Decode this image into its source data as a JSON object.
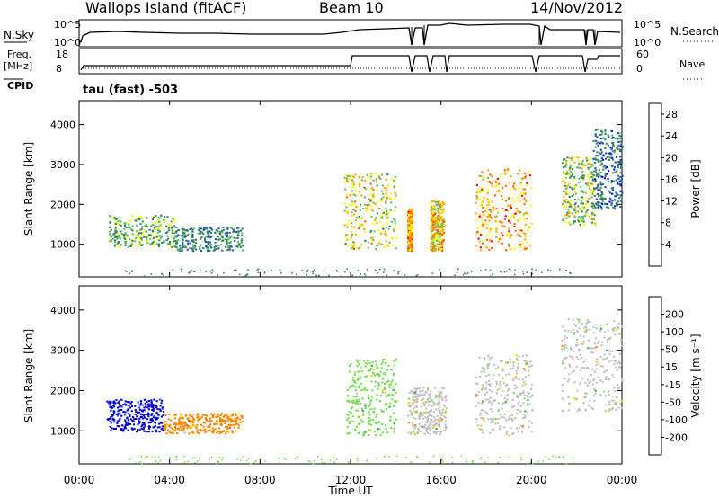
{
  "header": {
    "station": "Wallops Island (fitACF)",
    "beam": "Beam 10",
    "date": "14/Nov/2012"
  },
  "panels": {
    "nsky_label": "N.Sky",
    "nsky_ticks": [
      "10^5",
      "10^0"
    ],
    "nsearch_label": "N.Search",
    "nsearch_ticks": [
      "10^5",
      "10^0"
    ],
    "freq_label_1": "Freq.",
    "freq_label_2": "[MHz]",
    "freq_ticks": [
      "18",
      "8"
    ],
    "nave_label": "Nave",
    "nave_ticks": [
      "60",
      "0"
    ],
    "cpid_label": "CPID",
    "cpid_text": "tau (fast) -503"
  },
  "chart_data": [
    {
      "type": "heatmap",
      "name": "power",
      "xlabel": "Time UT",
      "ylabel": "Slant Range [km]",
      "x_ticks": [
        "00:00",
        "04:00",
        "08:00",
        "12:00",
        "16:00",
        "20:00",
        "00:00"
      ],
      "y_ticks": [
        1000,
        2000,
        3000,
        4000
      ],
      "ylim": [
        180,
        4600
      ],
      "colorbar_label": "Power [dB]",
      "colorbar_ticks": [
        4,
        8,
        12,
        16,
        20,
        24,
        28
      ],
      "colorbar_range": [
        0,
        30
      ],
      "colors": [
        "#0000ff",
        "#1e4fb0",
        "#3a7a6a",
        "#2e8b57",
        "#66bb66",
        "#ffff00",
        "#ffaa00",
        "#ff6600",
        "#ff0000"
      ],
      "regions": [
        {
          "t": [
            1.3,
            4.2
          ],
          "r": [
            950,
            1750
          ],
          "v": 14
        },
        {
          "t": [
            4.2,
            7.2
          ],
          "r": [
            850,
            1450
          ],
          "v": 10
        },
        {
          "t": [
            11.7,
            14.0
          ],
          "r": [
            900,
            2800
          ],
          "v": 18
        },
        {
          "t": [
            14.5,
            14.7
          ],
          "r": [
            850,
            1900
          ],
          "v": 22
        },
        {
          "t": [
            15.5,
            16.1
          ],
          "r": [
            850,
            2100
          ],
          "v": 20
        },
        {
          "t": [
            17.5,
            20.0
          ],
          "r": [
            850,
            2900
          ],
          "v": 22
        },
        {
          "t": [
            21.3,
            22.8
          ],
          "r": [
            1500,
            3200
          ],
          "v": 16
        },
        {
          "t": [
            22.7,
            24.0
          ],
          "r": [
            1900,
            3900
          ],
          "v": 8
        }
      ]
    },
    {
      "type": "heatmap",
      "name": "velocity",
      "xlabel": "Time UT",
      "ylabel": "Slant Range [km]",
      "x_ticks": [
        "00:00",
        "04:00",
        "08:00",
        "12:00",
        "16:00",
        "20:00",
        "00:00"
      ],
      "y_ticks": [
        1000,
        2000,
        3000,
        4000
      ],
      "ylim": [
        180,
        4600
      ],
      "colorbar_label": "Velocity [m s⁻¹]",
      "colorbar_ticks": [
        200,
        100,
        50,
        15,
        -15,
        -50,
        -100,
        -200
      ],
      "colors": [
        "#0000cc",
        "#2255ff",
        "#33aa33",
        "#77dd55",
        "#c0c0c0",
        "#ffcc00",
        "#ff8800",
        "#ff4400",
        "#ff0000"
      ],
      "regions": [
        {
          "t": [
            1.2,
            3.7
          ],
          "r": [
            1000,
            1800
          ],
          "v": 200
        },
        {
          "t": [
            3.7,
            7.2
          ],
          "r": [
            950,
            1450
          ],
          "v": -60
        },
        {
          "t": [
            11.8,
            14.0
          ],
          "r": [
            900,
            2800
          ],
          "v": 30
        },
        {
          "t": [
            14.5,
            16.2
          ],
          "r": [
            900,
            2100
          ],
          "v": 0
        },
        {
          "t": [
            17.5,
            20.0
          ],
          "r": [
            900,
            2900
          ],
          "v": 0
        },
        {
          "t": [
            21.3,
            24.0
          ],
          "r": [
            1500,
            3800
          ],
          "v": 0
        }
      ]
    }
  ]
}
